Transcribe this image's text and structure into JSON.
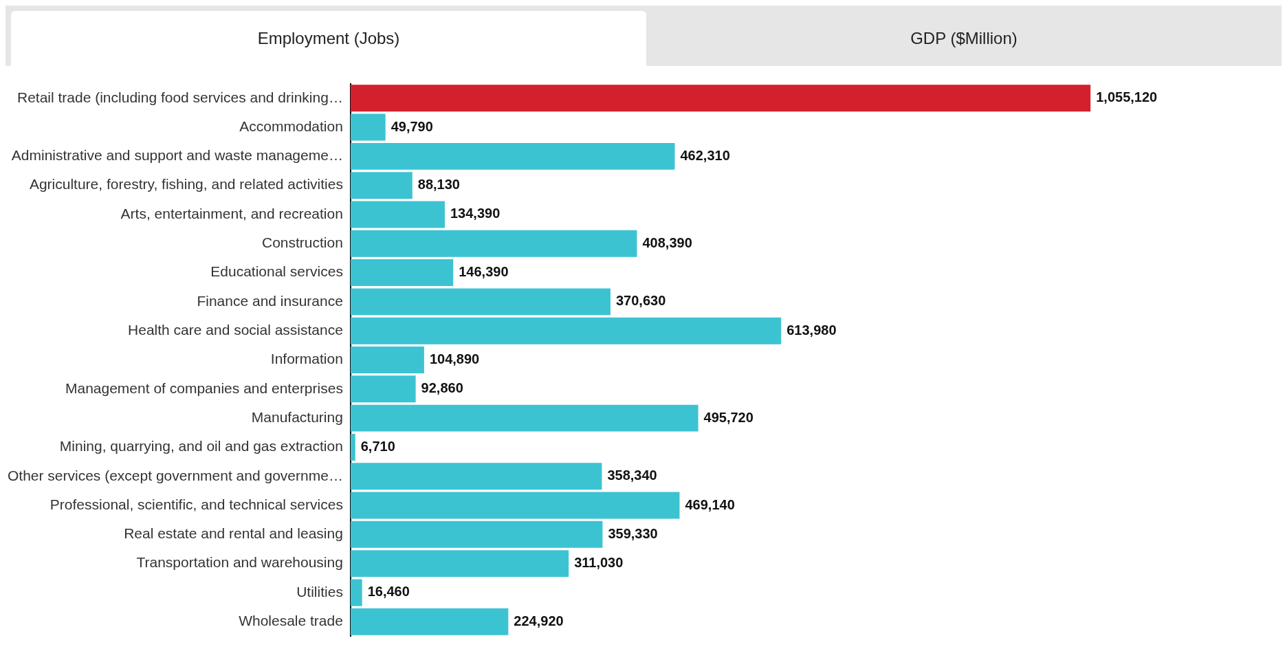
{
  "chart_data": {
    "type": "bar",
    "orientation": "horizontal",
    "title": "Employment (Jobs)",
    "annotations": [
      "GDP ($Million)"
    ],
    "categories": [
      "Retail trade (including food services and drinking…",
      "Accommodation",
      "Administrative and support and waste manageme…",
      "Agriculture, forestry, fishing, and related activities",
      "Arts, entertainment, and recreation",
      "Construction",
      "Educational services",
      "Finance and insurance",
      "Health care and social assistance",
      "Information",
      "Management of companies and enterprises",
      "Manufacturing",
      "Mining, quarrying, and oil and gas extraction",
      "Other services (except government and governme…",
      "Professional, scientific, and technical services",
      "Real estate and rental and leasing",
      "Transportation and warehousing",
      "Utilities",
      "Wholesale trade"
    ],
    "values": [
      1055120,
      49790,
      462310,
      88130,
      134390,
      408390,
      146390,
      370630,
      613980,
      104890,
      92860,
      495720,
      6710,
      358340,
      469140,
      359330,
      311030,
      16460,
      224920
    ],
    "colors": [
      "#d2202e",
      "#3cc3d2",
      "#3cc3d2",
      "#3cc3d2",
      "#3cc3d2",
      "#3cc3d2",
      "#3cc3d2",
      "#3cc3d2",
      "#3cc3d2",
      "#3cc3d2",
      "#3cc3d2",
      "#3cc3d2",
      "#3cc3d2",
      "#3cc3d2",
      "#3cc3d2",
      "#3cc3d2",
      "#3cc3d2",
      "#3cc3d2",
      "#3cc3d2"
    ],
    "value_labels": [
      "1,055,120",
      "49,790",
      "462,310",
      "88,130",
      "134,390",
      "408,390",
      "146,390",
      "370,630",
      "613,980",
      "104,890",
      "92,860",
      "495,720",
      "6,710",
      "358,340",
      "469,140",
      "359,330",
      "311,030",
      "16,460",
      "224,920"
    ],
    "legend": false
  }
}
